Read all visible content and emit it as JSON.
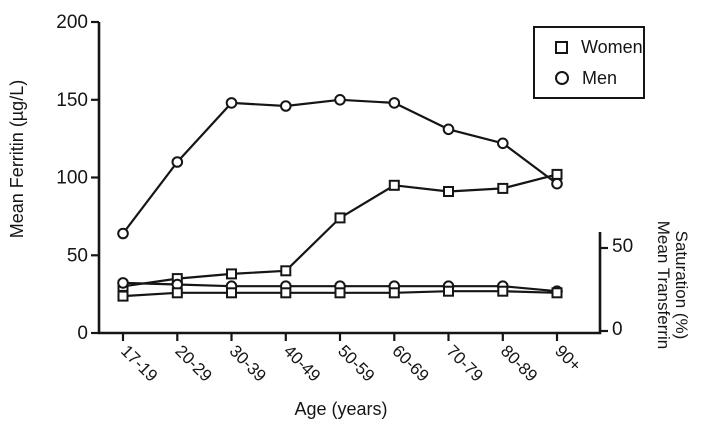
{
  "chart_data": {
    "type": "line",
    "xlabel": "Age (years)",
    "ylabel_left": "Mean Ferritin (µg/L)",
    "ylabel_right": "Mean Transferrin Saturation (%)",
    "ylabel_right_lines": [
      "Mean Transferrin",
      "Saturation (%)"
    ],
    "categories": [
      "17-19",
      "20-29",
      "30-39",
      "40-49",
      "50-59",
      "60-69",
      "70-79",
      "80-89",
      "90+"
    ],
    "left_axis": {
      "label": "Mean Ferritin (µg/L)",
      "range": [
        0,
        200
      ],
      "ticks": [
        0,
        50,
        100,
        150,
        200
      ]
    },
    "right_axis": {
      "label": "Mean Transferrin Saturation (%)",
      "range": [
        0,
        50
      ],
      "ticks": [
        0,
        50
      ]
    },
    "grid": false,
    "legend": {
      "position": "top-right",
      "entries": [
        {
          "label": "Women",
          "marker": "square"
        },
        {
          "label": "Men",
          "marker": "circle"
        }
      ]
    },
    "series": [
      {
        "name": "Women mean ferritin",
        "legend": "Women",
        "marker": "square",
        "axis": "left",
        "values": [
          30,
          35,
          38,
          40,
          74,
          95,
          91,
          93,
          102
        ]
      },
      {
        "name": "Men mean ferritin",
        "legend": "Men",
        "marker": "circle",
        "axis": "left",
        "values": [
          64,
          110,
          148,
          146,
          150,
          148,
          131,
          122,
          96
        ]
      },
      {
        "name": "Men transferrin saturation",
        "legend": "Men",
        "marker": "circle",
        "axis": "right",
        "values": [
          29,
          28,
          27,
          27,
          27,
          27,
          27,
          27,
          24
        ]
      },
      {
        "name": "Women transferrin saturation",
        "legend": "Women",
        "marker": "square",
        "axis": "right",
        "values": [
          21,
          23,
          23,
          23,
          23,
          23,
          24,
          24,
          23
        ]
      }
    ],
    "colors": {
      "ink": "#151515",
      "background": "#ffffff",
      "marker_fill": "#ffffff"
    }
  }
}
